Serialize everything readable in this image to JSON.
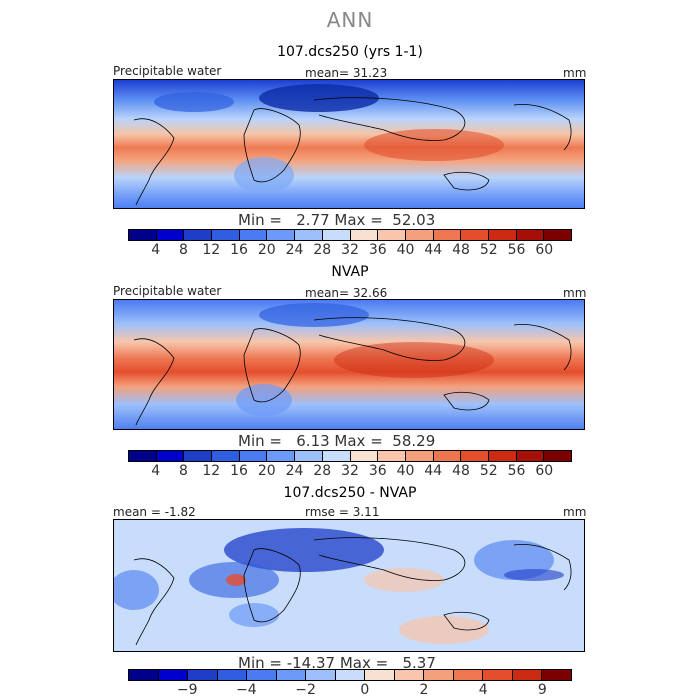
{
  "title": "ANN",
  "panels": [
    {
      "title": "107.dcs250 (yrs 1-1)",
      "left_label": "Precipitable water",
      "center_label": "mean=  31.23",
      "units": "mm",
      "minmax": "Min =   2.77 Max =  52.03",
      "colorbar": {
        "colors": [
          "#00008b",
          "#0000cd",
          "#1e3ec8",
          "#2f5fe0",
          "#4a7bf0",
          "#6d9af8",
          "#9cc0fb",
          "#c8dcfb",
          "#f6e1d2",
          "#f7c6ac",
          "#f4a07d",
          "#ee7651",
          "#e44e2d",
          "#cc2a12",
          "#a60f07",
          "#7c0000"
        ],
        "ticks": [
          "4",
          "8",
          "12",
          "16",
          "20",
          "24",
          "28",
          "32",
          "36",
          "40",
          "44",
          "48",
          "52",
          "56",
          "60"
        ]
      }
    },
    {
      "title": "NVAP",
      "left_label": "Precipitable water",
      "center_label": "mean=  32.66",
      "units": "mm",
      "minmax": "Min =   6.13 Max =  58.29",
      "colorbar": {
        "colors": [
          "#00008b",
          "#0000cd",
          "#1e3ec8",
          "#2f5fe0",
          "#4a7bf0",
          "#6d9af8",
          "#9cc0fb",
          "#c8dcfb",
          "#f6e1d2",
          "#f7c6ac",
          "#f4a07d",
          "#ee7651",
          "#e44e2d",
          "#cc2a12",
          "#a60f07",
          "#7c0000"
        ],
        "ticks": [
          "4",
          "8",
          "12",
          "16",
          "20",
          "24",
          "28",
          "32",
          "36",
          "40",
          "44",
          "48",
          "52",
          "56",
          "60"
        ]
      }
    },
    {
      "title": "107.dcs250 - NVAP",
      "left_label": "mean =  -1.82",
      "center_label": "rmse =   3.11",
      "units": "mm",
      "minmax": "Min = -14.37 Max =   5.37",
      "colorbar": {
        "colors": [
          "#00008b",
          "#0000cd",
          "#1e3ec8",
          "#2f5fe0",
          "#4a7bf0",
          "#6d9af8",
          "#9cc0fb",
          "#c8dcfb",
          "#f6e1d2",
          "#f7c6ac",
          "#f4a07d",
          "#ee7651",
          "#e44e2d",
          "#cc2a12",
          "#7c0000"
        ],
        "ticks": [
          "-9",
          "-4",
          "-2",
          "0",
          "2",
          "4",
          "9"
        ],
        "tick_positions": [
          2,
          4,
          6,
          8,
          10,
          12,
          14
        ]
      }
    }
  ]
}
